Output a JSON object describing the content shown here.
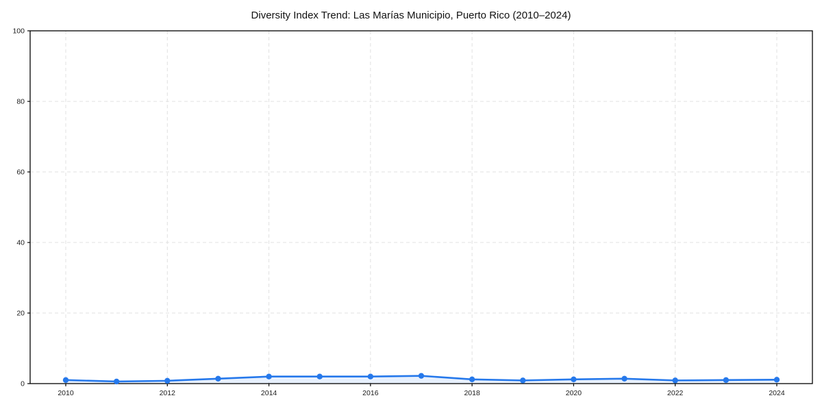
{
  "chart_data": {
    "type": "line",
    "title": "Diversity Index Trend: Las Marías Municipio, Puerto Rico (2010–2024)",
    "x": [
      2010,
      2011,
      2012,
      2013,
      2014,
      2015,
      2016,
      2017,
      2018,
      2019,
      2020,
      2021,
      2022,
      2023,
      2024
    ],
    "series": [
      {
        "name": "Diversity Index",
        "values": [
          1.0,
          0.6,
          0.8,
          1.4,
          2.0,
          2.0,
          2.0,
          2.2,
          1.2,
          0.9,
          1.2,
          1.4,
          0.9,
          1.0,
          1.1
        ]
      }
    ],
    "xlabel": "",
    "ylabel": "",
    "xtick_labels": [
      "2010",
      "2012",
      "2014",
      "2016",
      "2018",
      "2020",
      "2022",
      "2024"
    ],
    "yticks": [
      0,
      20,
      40,
      60,
      80,
      100
    ],
    "ylim": [
      0,
      100
    ],
    "grid": true,
    "grid_style": "dashed",
    "legend": false,
    "colors": {
      "line": "#2578eb",
      "marker": "#2578eb",
      "fill": "#2578eb",
      "fill_opacity": "0.11",
      "grid": "#e0e0e0",
      "axis": "#000000",
      "tick_text": "#1a1a1a",
      "background": "#ffffff"
    }
  }
}
